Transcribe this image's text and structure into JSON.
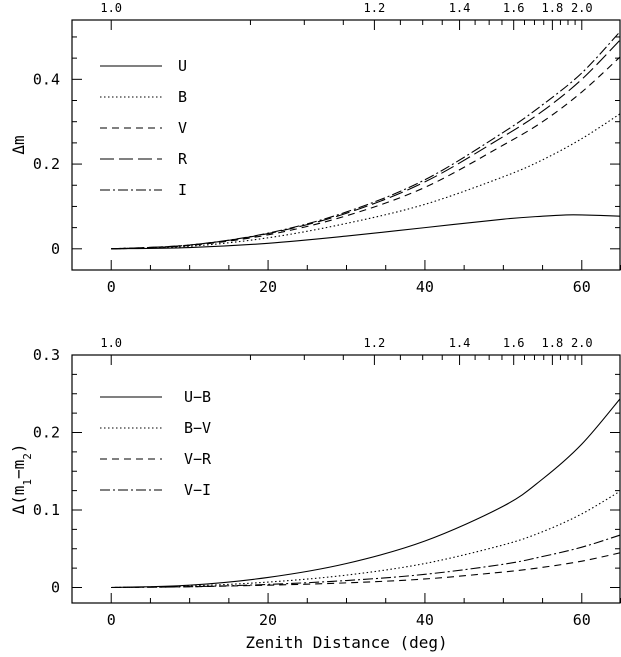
{
  "chart_data": [
    {
      "type": "line",
      "xlabel": "",
      "ylabel": "Δm",
      "xlim": [
        -5,
        65
      ],
      "ylim": [
        -0.05,
        0.54
      ],
      "x_ticks": [
        0,
        20,
        40,
        60
      ],
      "y_ticks": [
        0,
        0.2,
        0.4
      ],
      "y_tick_labels": [
        "0",
        "0.2",
        "0.4"
      ],
      "top_axis": {
        "ticks": [
          1.0,
          1.2,
          1.4,
          1.6,
          1.8,
          2.0
        ],
        "labels": [
          "1.0",
          "1.2",
          "1.4",
          "1.6",
          "1.8",
          "2.0"
        ]
      },
      "legend_position": "top-left",
      "series": [
        {
          "name": "U",
          "dash": "solid",
          "x": [
            0,
            10,
            20,
            30,
            40,
            50,
            55,
            58,
            60,
            65
          ],
          "y": [
            0,
            0.003,
            0.013,
            0.03,
            0.05,
            0.07,
            0.077,
            0.08,
            0.08,
            0.077
          ]
        },
        {
          "name": "B",
          "dash": "dotted",
          "x": [
            0,
            10,
            20,
            30,
            40,
            50,
            55,
            60,
            65
          ],
          "y": [
            0,
            0.006,
            0.026,
            0.06,
            0.105,
            0.17,
            0.21,
            0.26,
            0.32
          ]
        },
        {
          "name": "V",
          "dash": "dashed",
          "x": [
            0,
            10,
            20,
            30,
            40,
            50,
            55,
            60,
            65
          ],
          "y": [
            0,
            0.008,
            0.033,
            0.078,
            0.145,
            0.245,
            0.3,
            0.37,
            0.455
          ]
        },
        {
          "name": "R",
          "dash": "longdash",
          "x": [
            0,
            10,
            20,
            30,
            40,
            50,
            55,
            60,
            65
          ],
          "y": [
            0,
            0.009,
            0.036,
            0.084,
            0.158,
            0.265,
            0.325,
            0.4,
            0.495
          ]
        },
        {
          "name": "I",
          "dash": "dashdot",
          "x": [
            0,
            10,
            20,
            30,
            40,
            50,
            55,
            60,
            65
          ],
          "y": [
            0,
            0.009,
            0.037,
            0.087,
            0.163,
            0.275,
            0.34,
            0.415,
            0.515
          ]
        }
      ]
    },
    {
      "type": "line",
      "xlabel": "Zenith Distance (deg)",
      "ylabel": "Δ(m1−m2)",
      "xlim": [
        -5,
        65
      ],
      "ylim": [
        -0.02,
        0.3
      ],
      "x_ticks": [
        0,
        20,
        40,
        60
      ],
      "y_ticks": [
        0,
        0.1,
        0.2,
        0.3
      ],
      "y_tick_labels": [
        "0",
        "0.1",
        "0.2",
        "0.3"
      ],
      "top_axis": {
        "ticks": [
          1.0,
          1.2,
          1.4,
          1.6,
          1.8,
          2.0
        ],
        "labels": [
          "1.0",
          "1.2",
          "1.4",
          "1.6",
          "1.8",
          "2.0"
        ]
      },
      "legend_position": "top-left",
      "series": [
        {
          "name": "U−B",
          "dash": "solid",
          "x": [
            0,
            10,
            20,
            30,
            40,
            50,
            55,
            60,
            65
          ],
          "y": [
            0,
            0.003,
            0.013,
            0.031,
            0.06,
            0.105,
            0.14,
            0.185,
            0.245
          ]
        },
        {
          "name": "B−V",
          "dash": "dotted",
          "x": [
            0,
            10,
            20,
            30,
            40,
            50,
            55,
            60,
            65
          ],
          "y": [
            0,
            0.002,
            0.007,
            0.016,
            0.031,
            0.055,
            0.072,
            0.095,
            0.125
          ]
        },
        {
          "name": "V−R",
          "dash": "dashed",
          "x": [
            0,
            10,
            20,
            30,
            40,
            50,
            55,
            60,
            65
          ],
          "y": [
            0,
            0.001,
            0.003,
            0.006,
            0.011,
            0.02,
            0.026,
            0.034,
            0.045
          ]
        },
        {
          "name": "V−I",
          "dash": "dashdot",
          "x": [
            0,
            10,
            20,
            30,
            40,
            50,
            55,
            60,
            65
          ],
          "y": [
            0,
            0.001,
            0.004,
            0.009,
            0.017,
            0.03,
            0.04,
            0.052,
            0.068
          ]
        }
      ]
    }
  ]
}
